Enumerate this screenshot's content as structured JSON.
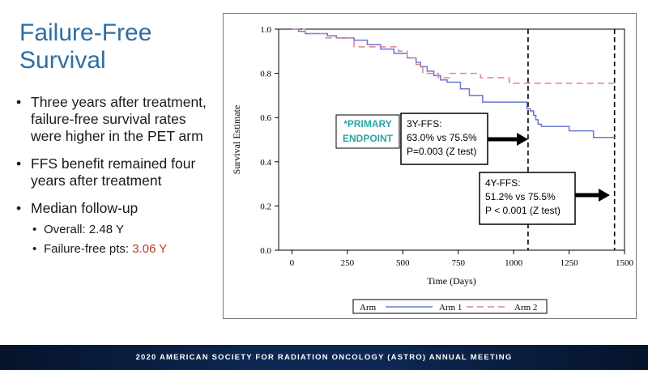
{
  "slide": {
    "title": "Failure-Free Survival",
    "bullets": [
      "Three years after treatment, failure-free survival rates were higher in the PET arm",
      "FFS benefit remained four years after treatment",
      "Median follow-up"
    ],
    "sub_bullets": [
      {
        "label": "Overall: 2.48 Y",
        "prefix": "",
        "highlight": ""
      },
      {
        "label": "",
        "prefix": "Failure-free pts: ",
        "highlight": "3.06 Y"
      }
    ],
    "highlight_color": "#c0392b",
    "footer": "2020 AMERICAN SOCIETY FOR RADIATION ONCOLOGY (ASTRO) ANNUAL MEETING"
  },
  "chart_data": {
    "type": "line",
    "title": "",
    "xlabel": "Time (Days)",
    "ylabel": "Survival Estimate",
    "xlim": [
      -60,
      1500
    ],
    "ylim": [
      0.0,
      1.0
    ],
    "xticks": [
      0,
      250,
      500,
      750,
      1000,
      1250,
      1500
    ],
    "xtick_labels": [
      "0",
      "250",
      "500",
      "750",
      "1000",
      "1250",
      "1500"
    ],
    "yticks": [
      0.0,
      0.2,
      0.4,
      0.6,
      0.8,
      1.0
    ],
    "ytick_labels": [
      "0.0",
      "0.2",
      "0.4",
      "0.6",
      "0.8",
      "1.0"
    ],
    "legend": {
      "title": "Arm",
      "position": "bottom"
    },
    "series": [
      {
        "name": "Arm 1",
        "color": "#6b74d6",
        "style": "solid",
        "x": [
          0,
          30,
          60,
          160,
          200,
          280,
          340,
          400,
          460,
          520,
          560,
          580,
          610,
          640,
          670,
          700,
          760,
          800,
          860,
          1000,
          1060,
          1075,
          1090,
          1100,
          1110,
          1125,
          1150,
          1170,
          1200,
          1250,
          1300,
          1340,
          1360,
          1460
        ],
        "y": [
          1.0,
          0.99,
          0.98,
          0.97,
          0.96,
          0.95,
          0.93,
          0.91,
          0.89,
          0.87,
          0.85,
          0.83,
          0.81,
          0.79,
          0.77,
          0.76,
          0.73,
          0.7,
          0.67,
          0.67,
          0.64,
          0.63,
          0.61,
          0.59,
          0.57,
          0.56,
          0.56,
          0.56,
          0.56,
          0.54,
          0.54,
          0.54,
          0.51,
          0.51
        ]
      },
      {
        "name": "Arm 2",
        "color": "#e08585",
        "style": "dashed",
        "x": [
          0,
          60,
          150,
          280,
          300,
          420,
          480,
          520,
          560,
          590,
          620,
          660,
          710,
          850,
          980,
          1000,
          1060,
          1460
        ],
        "y": [
          1.0,
          0.98,
          0.96,
          0.92,
          0.92,
          0.92,
          0.9,
          0.87,
          0.84,
          0.8,
          0.8,
          0.78,
          0.8,
          0.78,
          0.76,
          0.755,
          0.755,
          0.755
        ]
      }
    ],
    "reference_lines_x": [
      1065,
      1455
    ],
    "annotations": [
      {
        "name": "primary-endpoint",
        "lines": [
          "*PRIMARY",
          "ENDPOINT"
        ],
        "color": "#2aa7a0"
      },
      {
        "name": "3y-ffs",
        "lines": [
          "3Y-FFS:",
          "63.0% vs 75.5%",
          "P=0.003 (Z test)"
        ]
      },
      {
        "name": "4y-ffs",
        "lines": [
          "4Y-FFS:",
          "51.2% vs 75.5%",
          "P < 0.001 (Z test)"
        ]
      }
    ]
  }
}
